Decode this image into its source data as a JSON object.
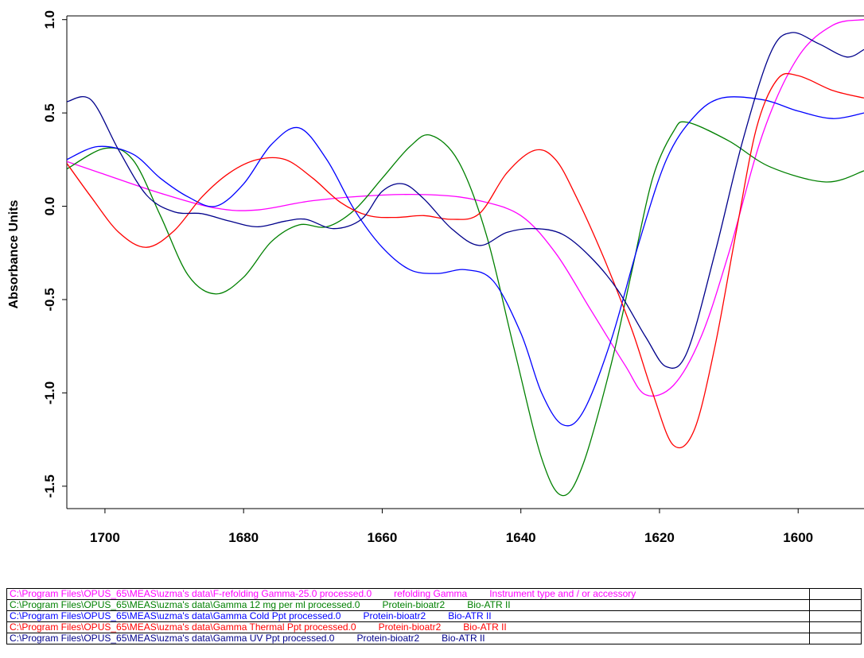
{
  "chart_data": {
    "type": "line",
    "ylabel": "Absorbance Units",
    "xlabel": "",
    "xlim": [
      1705.5,
      1590.5
    ],
    "ylim": [
      -1.62,
      1.02
    ],
    "x_ticks": [
      1700,
      1680,
      1660,
      1640,
      1620,
      1600
    ],
    "x_tick_labels": [
      "1700",
      "1680",
      "1660",
      "1640",
      "1620",
      "1600"
    ],
    "y_ticks": [
      1.0,
      0.5,
      0.0,
      -0.5,
      -1.0,
      -1.5
    ],
    "y_tick_labels": [
      "1.0",
      "0.5",
      "0.0",
      "-0.5",
      "-1.0",
      "-1.5"
    ],
    "grid": false,
    "series": [
      {
        "color": "#ff00ff",
        "points": [
          [
            1705.5,
            0.24
          ],
          [
            1700,
            0.17
          ],
          [
            1692,
            0.07
          ],
          [
            1684,
            -0.01
          ],
          [
            1678,
            -0.02
          ],
          [
            1670,
            0.03
          ],
          [
            1660,
            0.06
          ],
          [
            1652,
            0.06
          ],
          [
            1646,
            0.03
          ],
          [
            1640,
            -0.05
          ],
          [
            1635,
            -0.25
          ],
          [
            1630,
            -0.55
          ],
          [
            1625,
            -0.85
          ],
          [
            1622,
            -1.01
          ],
          [
            1618,
            -0.96
          ],
          [
            1614,
            -0.7
          ],
          [
            1610,
            -0.25
          ],
          [
            1605,
            0.4
          ],
          [
            1600,
            0.8
          ],
          [
            1595,
            0.97
          ],
          [
            1590.5,
            1.0
          ]
        ]
      },
      {
        "color": "#008000",
        "points": [
          [
            1705.5,
            0.2
          ],
          [
            1700,
            0.31
          ],
          [
            1696,
            0.25
          ],
          [
            1692,
            -0.05
          ],
          [
            1688,
            -0.37
          ],
          [
            1684,
            -0.47
          ],
          [
            1680,
            -0.38
          ],
          [
            1676,
            -0.19
          ],
          [
            1672,
            -0.1
          ],
          [
            1668,
            -0.11
          ],
          [
            1664,
            -0.02
          ],
          [
            1660,
            0.15
          ],
          [
            1656,
            0.32
          ],
          [
            1653,
            0.38
          ],
          [
            1649,
            0.24
          ],
          [
            1645,
            -0.15
          ],
          [
            1641,
            -0.76
          ],
          [
            1637,
            -1.35
          ],
          [
            1634,
            -1.55
          ],
          [
            1631,
            -1.38
          ],
          [
            1627,
            -0.85
          ],
          [
            1624,
            -0.35
          ],
          [
            1621,
            0.15
          ],
          [
            1618,
            0.4
          ],
          [
            1616,
            0.45
          ],
          [
            1610,
            0.35
          ],
          [
            1604,
            0.21
          ],
          [
            1596,
            0.13
          ],
          [
            1590.5,
            0.19
          ]
        ]
      },
      {
        "color": "#0000ff",
        "points": [
          [
            1705.5,
            0.25
          ],
          [
            1701,
            0.32
          ],
          [
            1696,
            0.28
          ],
          [
            1692,
            0.15
          ],
          [
            1688,
            0.05
          ],
          [
            1684,
            0.0
          ],
          [
            1680,
            0.12
          ],
          [
            1676,
            0.33
          ],
          [
            1672,
            0.42
          ],
          [
            1668,
            0.25
          ],
          [
            1664,
            -0.02
          ],
          [
            1660,
            -0.22
          ],
          [
            1656,
            -0.34
          ],
          [
            1652,
            -0.36
          ],
          [
            1648,
            -0.34
          ],
          [
            1644,
            -0.4
          ],
          [
            1640,
            -0.68
          ],
          [
            1637,
            -1.0
          ],
          [
            1634,
            -1.17
          ],
          [
            1631,
            -1.1
          ],
          [
            1627,
            -0.72
          ],
          [
            1623,
            -0.2
          ],
          [
            1619,
            0.25
          ],
          [
            1615,
            0.48
          ],
          [
            1611,
            0.58
          ],
          [
            1605,
            0.57
          ],
          [
            1600,
            0.51
          ],
          [
            1595,
            0.47
          ],
          [
            1590.5,
            0.5
          ]
        ]
      },
      {
        "color": "#ff0000",
        "points": [
          [
            1705.5,
            0.23
          ],
          [
            1702,
            0.05
          ],
          [
            1698,
            -0.14
          ],
          [
            1694,
            -0.22
          ],
          [
            1690,
            -0.13
          ],
          [
            1686,
            0.05
          ],
          [
            1682,
            0.18
          ],
          [
            1678,
            0.25
          ],
          [
            1674,
            0.25
          ],
          [
            1670,
            0.15
          ],
          [
            1666,
            0.02
          ],
          [
            1662,
            -0.05
          ],
          [
            1658,
            -0.06
          ],
          [
            1654,
            -0.05
          ],
          [
            1650,
            -0.07
          ],
          [
            1646,
            -0.04
          ],
          [
            1642,
            0.18
          ],
          [
            1638,
            0.3
          ],
          [
            1635,
            0.25
          ],
          [
            1632,
            0.05
          ],
          [
            1628,
            -0.28
          ],
          [
            1624,
            -0.66
          ],
          [
            1621,
            -1.0
          ],
          [
            1618,
            -1.28
          ],
          [
            1615,
            -1.2
          ],
          [
            1612,
            -0.75
          ],
          [
            1609,
            -0.15
          ],
          [
            1606,
            0.42
          ],
          [
            1603,
            0.68
          ],
          [
            1600,
            0.7
          ],
          [
            1595,
            0.62
          ],
          [
            1590.5,
            0.58
          ]
        ]
      },
      {
        "color": "#00008b",
        "points": [
          [
            1705.5,
            0.56
          ],
          [
            1702,
            0.57
          ],
          [
            1698,
            0.3
          ],
          [
            1694,
            0.06
          ],
          [
            1690,
            -0.03
          ],
          [
            1686,
            -0.04
          ],
          [
            1682,
            -0.08
          ],
          [
            1678,
            -0.11
          ],
          [
            1674,
            -0.08
          ],
          [
            1671,
            -0.07
          ],
          [
            1667,
            -0.12
          ],
          [
            1663,
            -0.07
          ],
          [
            1660,
            0.08
          ],
          [
            1657,
            0.12
          ],
          [
            1654,
            0.04
          ],
          [
            1650,
            -0.12
          ],
          [
            1646,
            -0.21
          ],
          [
            1642,
            -0.14
          ],
          [
            1638,
            -0.12
          ],
          [
            1634,
            -0.15
          ],
          [
            1630,
            -0.27
          ],
          [
            1626,
            -0.45
          ],
          [
            1622,
            -0.7
          ],
          [
            1619,
            -0.86
          ],
          [
            1616,
            -0.78
          ],
          [
            1612,
            -0.25
          ],
          [
            1608,
            0.35
          ],
          [
            1604,
            0.82
          ],
          [
            1601,
            0.93
          ],
          [
            1597,
            0.87
          ],
          [
            1593,
            0.8
          ],
          [
            1590.5,
            0.84
          ]
        ]
      }
    ]
  },
  "legend": {
    "rows": [
      {
        "color": "#ff00ff",
        "path": "C:\\Program Files\\OPUS_65\\MEAS\\uzma's data\\F-refolding Gamma-25.0 processed.0",
        "sample": "refolding Gamma",
        "instrument": "Instrument type and / or accessory"
      },
      {
        "color": "#008000",
        "path": "C:\\Program Files\\OPUS_65\\MEAS\\uzma's data\\Gamma 12 mg per ml processed.0",
        "sample": "Protein-bioatr2",
        "instrument": "Bio-ATR II"
      },
      {
        "color": "#0000ff",
        "path": "C:\\Program Files\\OPUS_65\\MEAS\\uzma's data\\Gamma Cold Ppt processed.0",
        "sample": "Protein-bioatr2",
        "instrument": "Bio-ATR II"
      },
      {
        "color": "#ff0000",
        "path": "C:\\Program Files\\OPUS_65\\MEAS\\uzma's data\\Gamma Thermal Ppt processed.0",
        "sample": "Protein-bioatr2",
        "instrument": "Bio-ATR II"
      },
      {
        "color": "#00008b",
        "path": "C:\\Program Files\\OPUS_65\\MEAS\\uzma's data\\Gamma UV Ppt processed.0",
        "sample": "Protein-bioatr2",
        "instrument": "Bio-ATR II"
      }
    ]
  }
}
